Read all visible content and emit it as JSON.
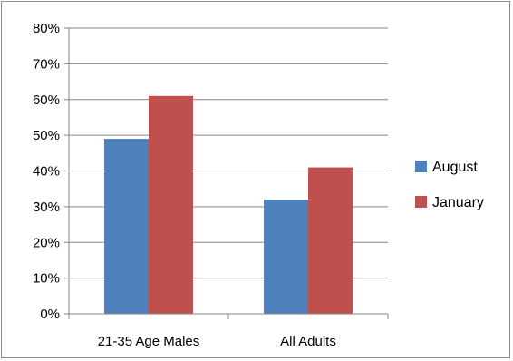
{
  "chart_data": {
    "type": "bar",
    "title": "",
    "xlabel": "",
    "ylabel": "",
    "categories": [
      "21-35 Age Males",
      "All Adults"
    ],
    "series": [
      {
        "name": "August",
        "values": [
          49,
          32
        ],
        "color": "#4f81bd"
      },
      {
        "name": "January",
        "values": [
          61,
          41
        ],
        "color": "#c0504d"
      }
    ],
    "ylim": [
      0,
      80
    ],
    "yticks": [
      0,
      10,
      20,
      30,
      40,
      50,
      60,
      70,
      80
    ],
    "ytick_labels": [
      "0%",
      "10%",
      "20%",
      "30%",
      "40%",
      "50%",
      "60%",
      "70%",
      "80%"
    ],
    "grid": true,
    "legend_position": "right"
  }
}
